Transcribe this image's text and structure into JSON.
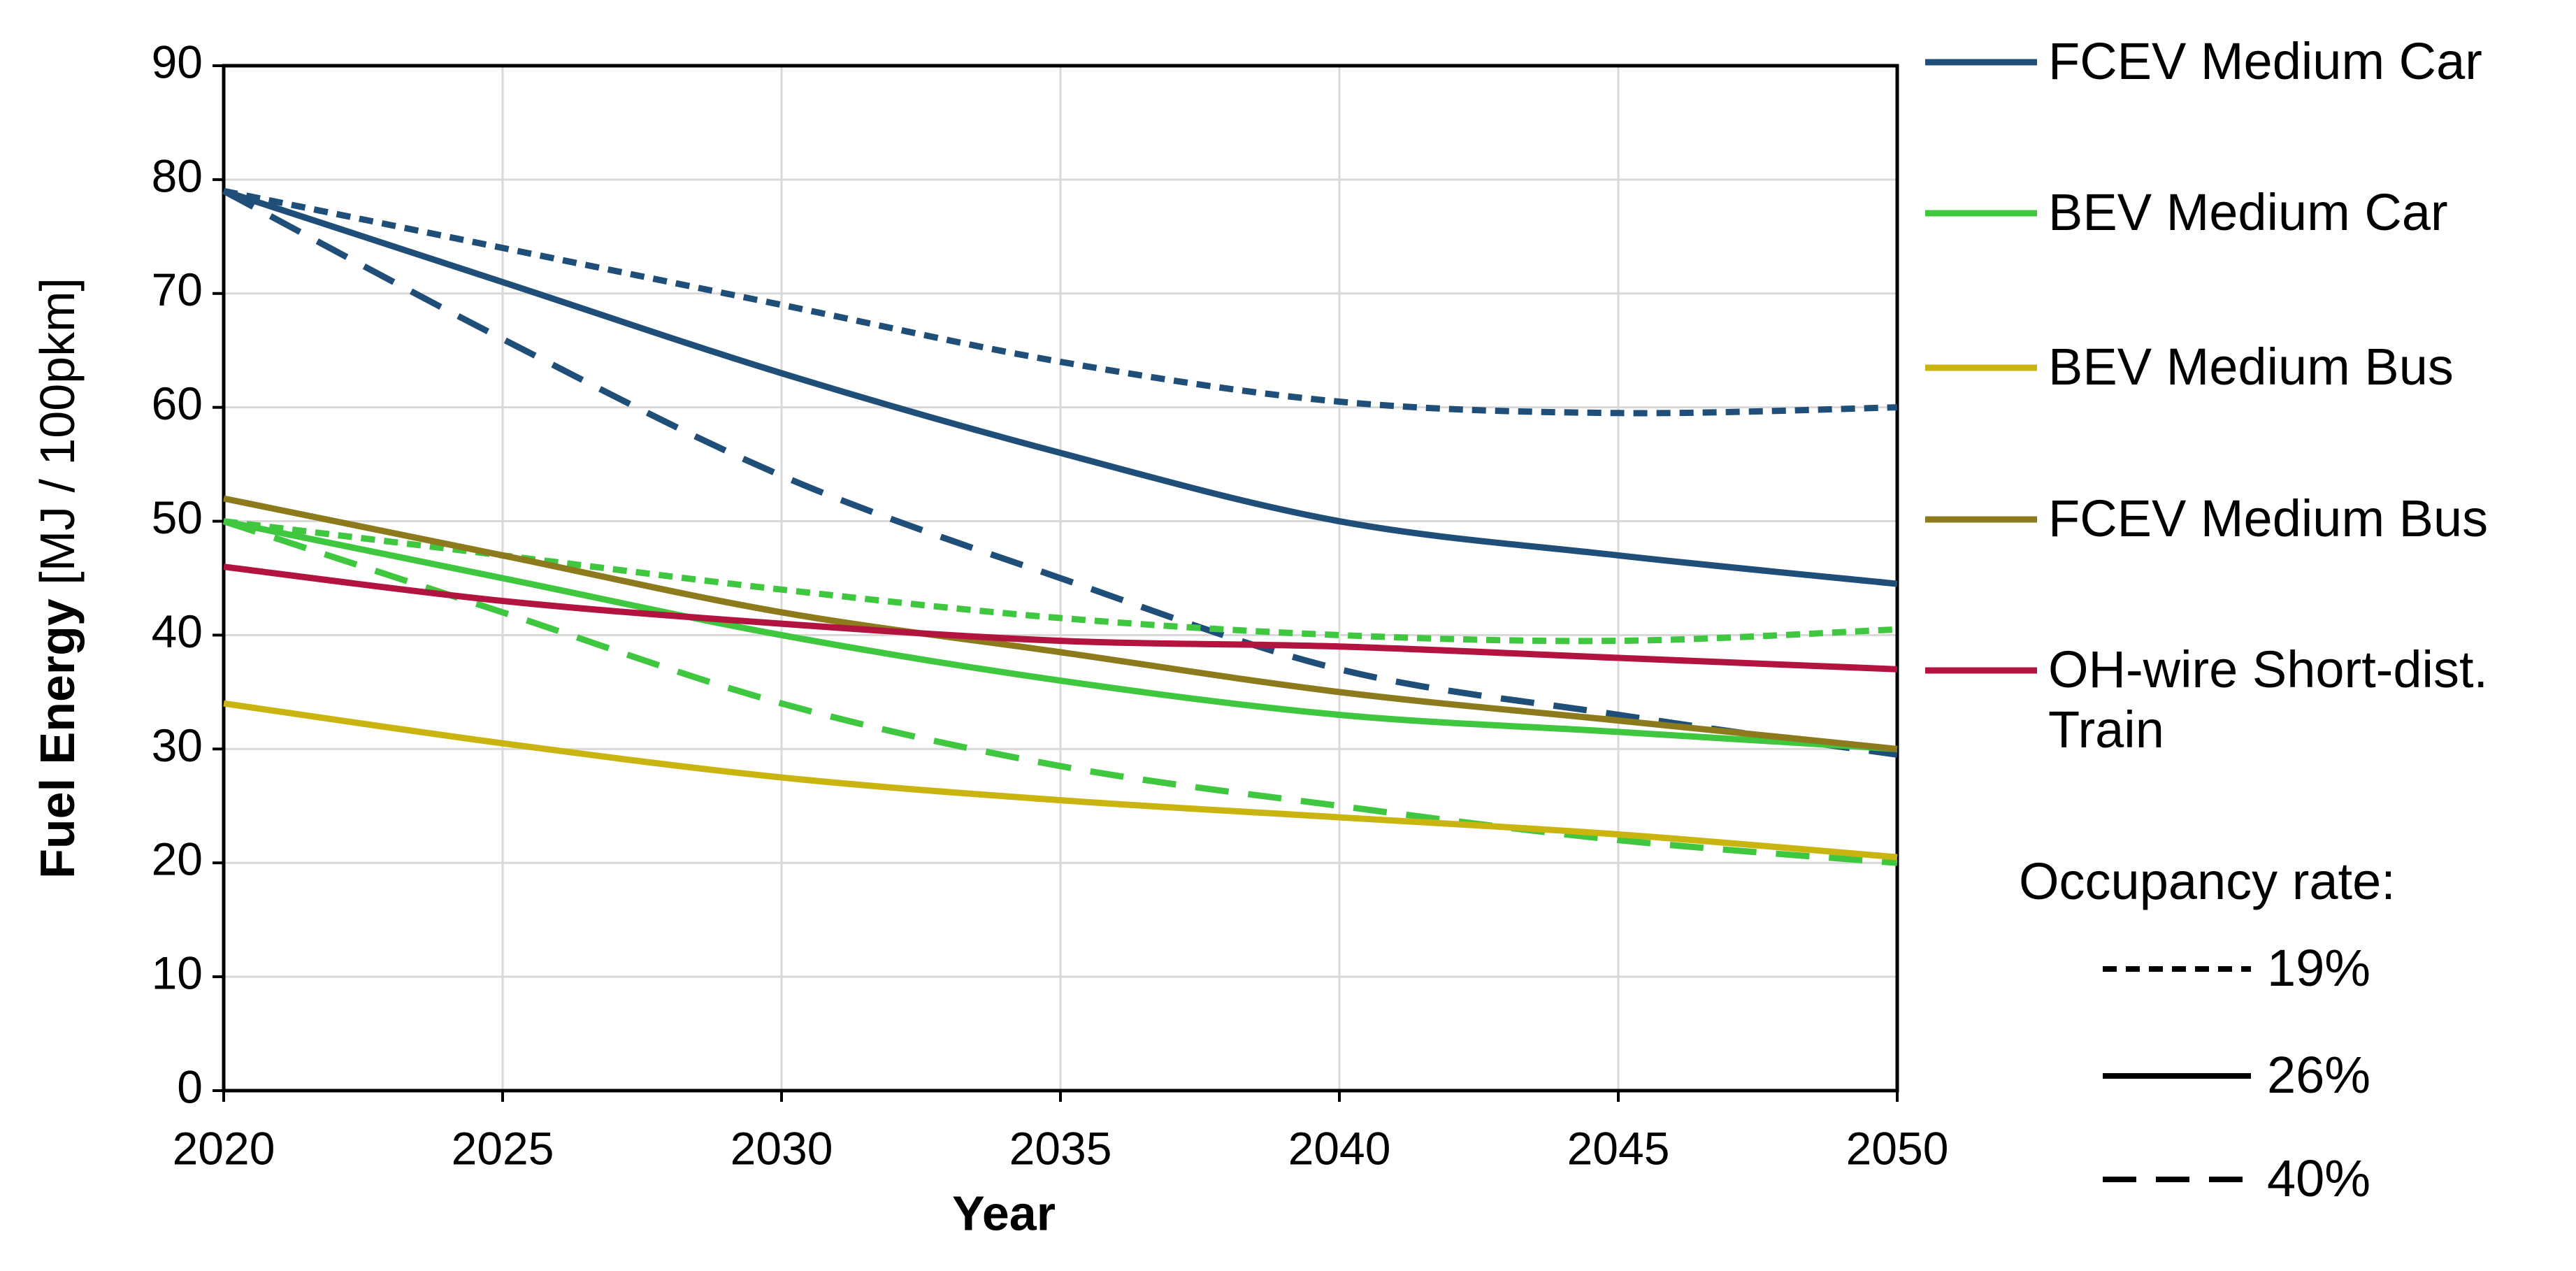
{
  "chart_data": {
    "type": "line",
    "x_label": "Year",
    "y_label": "Fuel Energy",
    "y_label_unit": "[MJ / 100pkm]",
    "x": [
      2020,
      2025,
      2030,
      2035,
      2040,
      2045,
      2050
    ],
    "xlim": [
      2020,
      2050
    ],
    "xticks": [
      2020,
      2025,
      2030,
      2035,
      2040,
      2045,
      2050
    ],
    "ylim": [
      0,
      90
    ],
    "yticks": [
      0,
      10,
      20,
      30,
      40,
      50,
      60,
      70,
      80,
      90
    ],
    "grid": true,
    "occupancy_legend": {
      "title": "Occupancy rate:",
      "entries": [
        {
          "label": "19%",
          "dash": "short"
        },
        {
          "label": "26%",
          "dash": "solid"
        },
        {
          "label": "40%",
          "dash": "long"
        }
      ]
    },
    "series": [
      {
        "name": "FCEV Medium Car",
        "color": "#1f4e79",
        "lines": [
          [
            79,
            74,
            69,
            64,
            60.5,
            59.5,
            60
          ],
          [
            79,
            71,
            63,
            56,
            50,
            47,
            44.5
          ],
          [
            79,
            66,
            54,
            45,
            37,
            33,
            29.5
          ]
        ]
      },
      {
        "name": "BEV Medium Car",
        "color": "#3fc83f",
        "lines": [
          [
            50,
            47,
            44,
            41.5,
            40,
            39.5,
            40.5
          ],
          [
            50,
            45,
            40,
            36,
            33,
            31.5,
            30
          ],
          [
            50,
            42,
            34,
            28.5,
            25,
            22,
            20
          ]
        ]
      },
      {
        "name": "BEV Medium Bus",
        "color": "#c9b410",
        "lines": [
          null,
          [
            34,
            30.5,
            27.5,
            25.5,
            24,
            22.5,
            20.5
          ],
          null
        ]
      },
      {
        "name": "FCEV Medium Bus",
        "color": "#8c7a1c",
        "lines": [
          null,
          [
            52,
            47,
            42,
            38.5,
            35,
            32.5,
            30
          ],
          null
        ]
      },
      {
        "name": "OH-wire Short-dist. Train",
        "color": "#b3133f",
        "lines": [
          null,
          [
            46,
            43,
            41,
            39.5,
            39,
            38,
            37
          ],
          null
        ]
      }
    ]
  }
}
